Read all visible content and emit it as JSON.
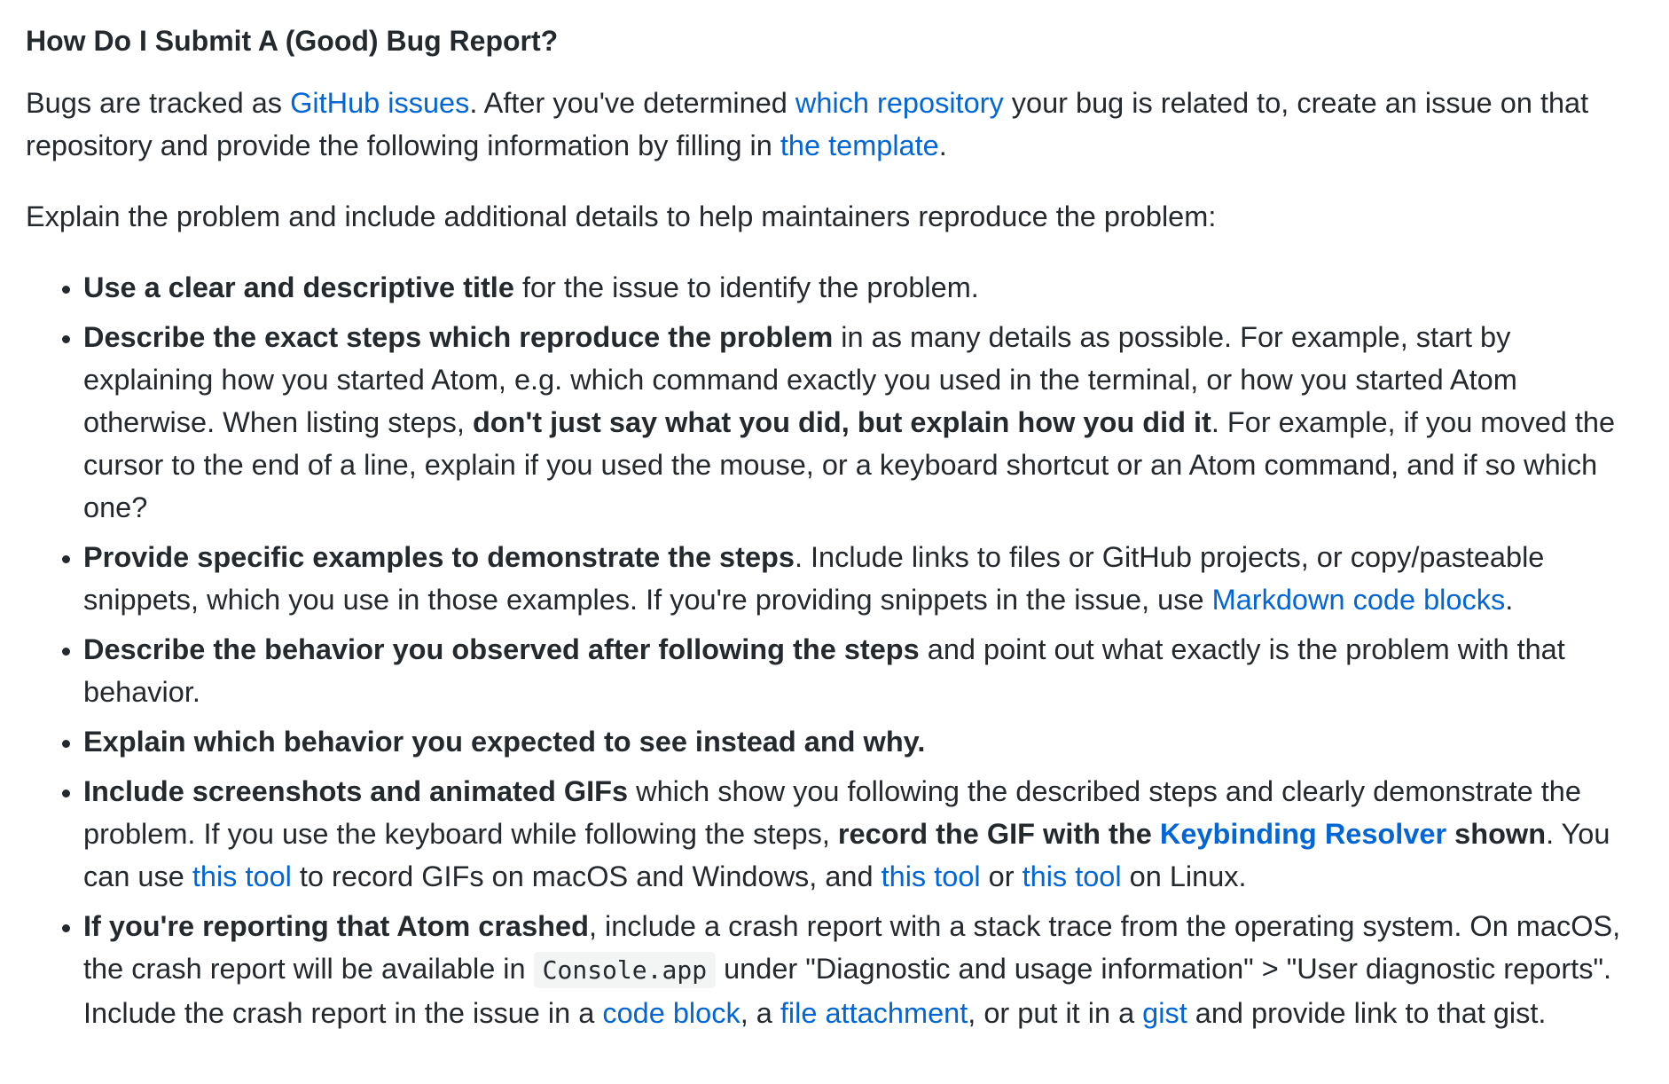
{
  "heading": "How Do I Submit A (Good) Bug Report?",
  "intro": {
    "t1": "Bugs are tracked as ",
    "link_issues": "GitHub issues",
    "t2": ". After you've determined ",
    "link_repo": "which repository",
    "t3": " your bug is related to, create an issue on that repository and provide the following information by filling in ",
    "link_template": "the template",
    "t4": "."
  },
  "explain": "Explain the problem and include additional details to help maintainers reproduce the problem:",
  "items": {
    "title": {
      "bold": "Use a clear and descriptive title",
      "rest": " for the issue to identify the problem."
    },
    "steps": {
      "bold1": "Describe the exact steps which reproduce the problem",
      "t1": " in as many details as possible. For example, start by explaining how you started Atom, e.g. which command exactly you used in the terminal, or how you started Atom otherwise. When listing steps, ",
      "bold2": "don't just say what you did, but explain how you did it",
      "t2": ". For example, if you moved the cursor to the end of a line, explain if you used the mouse, or a keyboard shortcut or an Atom command, and if so which one?"
    },
    "examples": {
      "bold": "Provide specific examples to demonstrate the steps",
      "t1": ". Include links to files or GitHub projects, or copy/pasteable snippets, which you use in those examples. If you're providing snippets in the issue, use ",
      "link_markdown": "Markdown code blocks",
      "t2": "."
    },
    "behavior": {
      "bold": "Describe the behavior you observed after following the steps",
      "rest": " and point out what exactly is the problem with that behavior."
    },
    "expected": {
      "bold": "Explain which behavior you expected to see instead and why."
    },
    "screenshots": {
      "bold1": "Include screenshots and animated GIFs",
      "t1": " which show you following the described steps and clearly demonstrate the problem. If you use the keyboard while following the steps, ",
      "bold2a": "record the GIF with the ",
      "link_keybinding": "Keybinding Resolver",
      "bold2b": " shown",
      "t2": ". You can use ",
      "link_tool1": "this tool",
      "t3": " to record GIFs on macOS and Windows, and ",
      "link_tool2": "this tool",
      "t4": " or ",
      "link_tool3": "this tool",
      "t5": " on Linux."
    },
    "crash": {
      "bold": "If you're reporting that Atom crashed",
      "t1": ", include a crash report with a stack trace from the operating system. On macOS, the crash report will be available in ",
      "code": "Console.app",
      "t2": " under \"Diagnostic and usage information\" > \"User diagnostic reports\". Include the crash report in the issue in a ",
      "link_codeblock": "code block",
      "t3": ", a ",
      "link_attachment": "file attachment",
      "t4": ", or put it in a ",
      "link_gist": "gist",
      "t5": " and provide link to that gist."
    }
  },
  "colors": {
    "text": "#24292e",
    "link": "#0366d6",
    "code_bg": "#f3f4f4"
  }
}
